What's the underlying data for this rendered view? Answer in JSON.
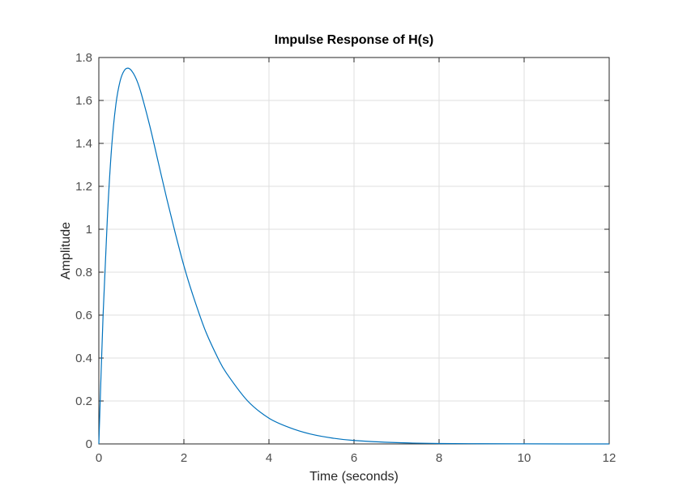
{
  "chart_data": {
    "type": "line",
    "title": "Impulse Response of H(s)",
    "xlabel": "Time (seconds)",
    "ylabel": "Amplitude",
    "xlim": [
      0,
      12
    ],
    "ylim": [
      0,
      1.8
    ],
    "xticks": [
      "0",
      "2",
      "4",
      "6",
      "8",
      "10",
      "12"
    ],
    "yticks": [
      "0",
      "0.2",
      "0.4",
      "0.6",
      "0.8",
      "1",
      "1.2",
      "1.4",
      "1.6",
      "1.8"
    ],
    "grid": true,
    "series": [
      {
        "color": "#0072bd",
        "x": [
          0,
          0.1,
          0.2,
          0.3,
          0.4,
          0.5,
          0.6,
          0.7,
          0.8,
          0.9,
          1.0,
          1.2,
          1.4,
          1.6,
          1.8,
          2.0,
          2.2,
          2.5,
          2.8,
          3.0,
          3.5,
          4.0,
          4.5,
          5.0,
          5.5,
          6.0,
          7.0,
          8.0,
          9.0,
          10.0,
          11.0,
          12.0
        ],
        "y": [
          0,
          0.6,
          1.05,
          1.38,
          1.58,
          1.69,
          1.74,
          1.75,
          1.73,
          1.69,
          1.63,
          1.48,
          1.31,
          1.14,
          0.98,
          0.83,
          0.7,
          0.53,
          0.4,
          0.33,
          0.2,
          0.12,
          0.075,
          0.045,
          0.027,
          0.016,
          0.006,
          0.002,
          0.001,
          0.0004,
          0.0001,
          0
        ]
      }
    ]
  }
}
